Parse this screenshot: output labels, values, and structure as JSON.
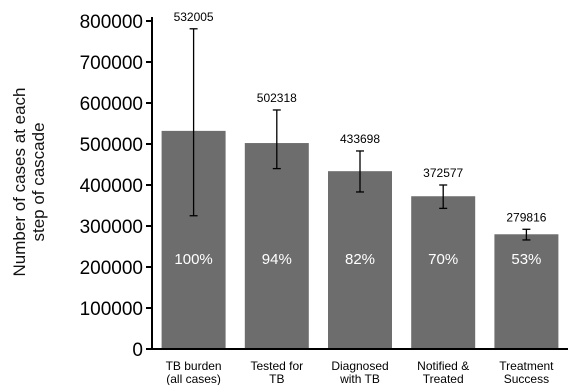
{
  "chart_data": {
    "type": "bar",
    "ylabel": "Number of cases at each step of cascade",
    "ylabel_lines": [
      "Number of cases at each",
      "step of cascade"
    ],
    "ylim": [
      0,
      800000
    ],
    "yticks": [
      0,
      100000,
      200000,
      300000,
      400000,
      500000,
      600000,
      700000,
      800000
    ],
    "ytick_labels": [
      "0",
      "100000",
      "200000",
      "300000",
      "400000",
      "500000",
      "600000",
      "700000",
      "800000"
    ],
    "categories": [
      [
        "TB burden",
        "(all cases)"
      ],
      [
        "Tested for",
        "TB"
      ],
      [
        "Diagnosed",
        "with TB"
      ],
      [
        "Notified &",
        "Treated"
      ],
      [
        "Treatment",
        "Success"
      ]
    ],
    "values": [
      532005,
      502318,
      433698,
      372577,
      279816
    ],
    "value_labels": [
      "532005",
      "502318",
      "433698",
      "372577",
      "279816"
    ],
    "percent_labels": [
      "100%",
      "94%",
      "82%",
      "70%",
      "53%"
    ],
    "error_low": [
      325000,
      440000,
      383000,
      343000,
      266000
    ],
    "error_high": [
      781000,
      583000,
      483000,
      400000,
      292000
    ],
    "bar_color": "#6d6d6d",
    "axis_color": "#000000",
    "grid": false,
    "legend": "none"
  }
}
